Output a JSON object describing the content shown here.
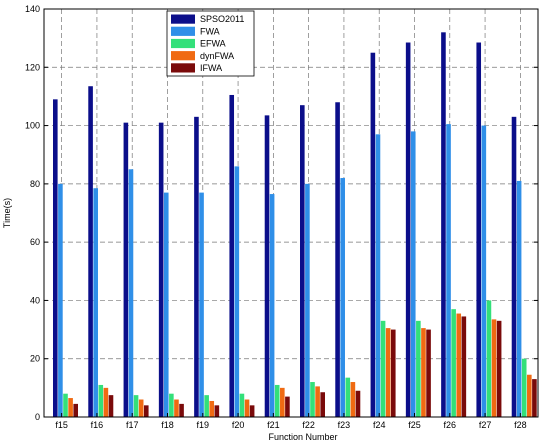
{
  "chart_data": {
    "type": "bar",
    "xlabel": "Function Number",
    "ylabel": "Time(s)",
    "ylim": [
      0,
      140
    ],
    "yticks": [
      0,
      20,
      40,
      60,
      80,
      100,
      120,
      140
    ],
    "grid": true,
    "legend_position": "top-center",
    "categories": [
      "f15",
      "f16",
      "f17",
      "f18",
      "f19",
      "f20",
      "f21",
      "f22",
      "f23",
      "f24",
      "f25",
      "f26",
      "f27",
      "f28"
    ],
    "series": [
      {
        "name": "SPSO2011",
        "color": "#0b0e8a",
        "values": [
          109,
          113.5,
          101,
          101,
          103,
          110.5,
          103.5,
          107,
          108,
          125,
          128.5,
          132,
          128.5,
          103
        ]
      },
      {
        "name": "FWA",
        "color": "#2f8fe8",
        "values": [
          80,
          78.5,
          85,
          77,
          77,
          86,
          76.5,
          80,
          82,
          97,
          98,
          100.5,
          100,
          81
        ]
      },
      {
        "name": "EFWA",
        "color": "#33e07a",
        "values": [
          8,
          11,
          7.5,
          8,
          7.5,
          8,
          11,
          12,
          13.5,
          33,
          33,
          37,
          40,
          20
        ]
      },
      {
        "name": "dynFWA",
        "color": "#f06a12",
        "values": [
          6.5,
          10,
          6,
          6,
          5.5,
          6,
          10,
          10.5,
          12,
          30.5,
          30.5,
          35.5,
          33.5,
          14.5
        ]
      },
      {
        "name": "IFWA",
        "color": "#7a0a0a",
        "values": [
          4.5,
          7.5,
          4,
          4.5,
          4,
          4,
          7,
          8.5,
          9,
          30,
          30,
          34.5,
          33,
          13
        ]
      }
    ]
  }
}
